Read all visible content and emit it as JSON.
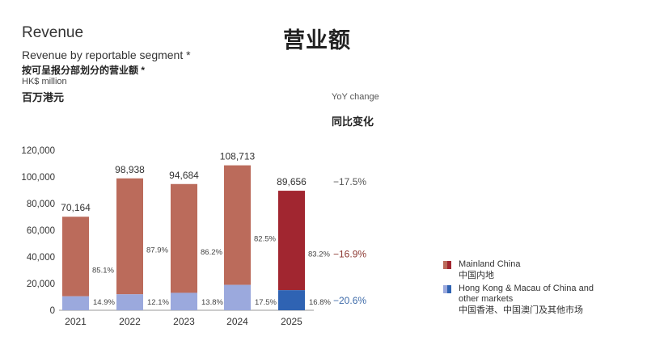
{
  "header": {
    "title_en": "Revenue",
    "title_zh": "营业额",
    "subtitle_en": "Revenue by reportable segment *",
    "subtitle_zh": "按可呈报分部划分的营业额 *",
    "unit_en": "HK$ million",
    "unit_zh": "百万港元",
    "yoy_en": "YoY change",
    "yoy_zh": "同比变化"
  },
  "legend": {
    "mainland_label_en": "Mainland China",
    "mainland_label_zh": "中国内地",
    "hk_label_en": "Hong Kong & Macau of China and other markets",
    "hk_label_zh": "中国香港、中国澳门及其他市场"
  },
  "colors": {
    "mainland": "#bb6b5b",
    "mainland_highlight": "#a12630",
    "hk": "#9ba9dd",
    "hk_highlight": "#2f63b3",
    "yoy_neutral": "#555555",
    "yoy_mainland": "#8e3a33",
    "yoy_hk": "#3d6aa8"
  },
  "chart_data": {
    "type": "bar",
    "stacked": true,
    "categories": [
      "2021",
      "2022",
      "2023",
      "2024",
      "2025"
    ],
    "totals": [
      70164,
      98938,
      94684,
      108713,
      89656
    ],
    "total_labels": [
      "70,164",
      "98,938",
      "94,684",
      "108,713",
      "89,656"
    ],
    "series": [
      {
        "name": "Mainland China",
        "share_labels": [
          "85.1%",
          "87.9%",
          "86.2%",
          "82.5%",
          "83.2%"
        ],
        "share": [
          85.1,
          87.9,
          86.2,
          82.5,
          83.2
        ]
      },
      {
        "name": "Hong Kong & Macau of China and other markets",
        "share_labels": [
          "14.9%",
          "12.1%",
          "13.8%",
          "17.5%",
          "16.8%"
        ],
        "share": [
          14.9,
          12.1,
          13.8,
          17.5,
          16.8
        ]
      }
    ],
    "yoy": {
      "total": "−17.5%",
      "mainland": "−16.9%",
      "hk": "−20.6%"
    },
    "y_ticks": [
      "0",
      "20,000",
      "40,000",
      "60,000",
      "80,000",
      "100,000",
      "120,000"
    ],
    "y_tick_values": [
      0,
      20000,
      40000,
      60000,
      80000,
      100000,
      120000
    ],
    "ylim": [
      0,
      120000
    ],
    "highlight_index": 4
  }
}
